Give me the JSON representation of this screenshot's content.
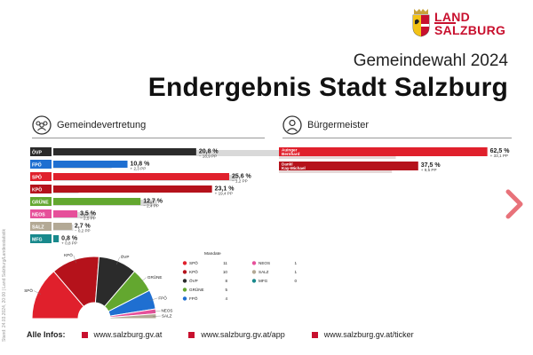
{
  "logo": {
    "line1": "LAND",
    "line2": "SALZBURG"
  },
  "header": {
    "subtitle": "Gemeindewahl 2024",
    "title": "Endergebnis Stadt Salzburg"
  },
  "sections": {
    "council": "Gemeindevertretung",
    "mayor": "Bürgermeister"
  },
  "side_note": "Stand: 24.03.2024, 20:00 | Land Salzburg/Landesstatistik",
  "footer": {
    "label": "Alle Infos:",
    "links": [
      "www.salzburg.gv.at",
      "www.salzburg.gv.at/app",
      "www.salzburg.gv.at/ticker"
    ]
  },
  "colors": {
    "brand_red": "#c8102e",
    "comparison_gray": "#d9d9d9",
    "text": "#222222"
  },
  "chart_data": [
    {
      "type": "bar",
      "title": "Gemeindevertretung",
      "orientation": "horizontal",
      "xlim": [
        0,
        30
      ],
      "categories": [
        "ÖVP",
        "FPÖ",
        "SPÖ",
        "KPÖ",
        "GRÜNE",
        "NEOS",
        "SALZ",
        "MFG"
      ],
      "values": [
        20.8,
        10.8,
        25.6,
        23.1,
        12.7,
        3.5,
        2.7,
        0.8
      ],
      "value_labels": [
        "20,8 %",
        "10,8 %",
        "25,6 %",
        "23,1 %",
        "12,7 %",
        "3,5 %",
        "2,7 %",
        "0,8 %"
      ],
      "change_labels": [
        "− 18,9 PP",
        "+ 2,3 PP",
        "− 1,2 PP",
        "+ 19,4 PP",
        "− 2,4 PP",
        "− 2,5 PP",
        "− 0,2 PP",
        "+ 0,8 PP"
      ],
      "previous_values": [
        39.7,
        8.5,
        26.8,
        3.7,
        15.1,
        6.0,
        2.9,
        0
      ],
      "colors": [
        "#2b2b2b",
        "#1f6fd1",
        "#e0202c",
        "#b5121b",
        "#63a72f",
        "#e6509a",
        "#b3a995",
        "#18898c"
      ]
    },
    {
      "type": "bar",
      "title": "Bürgermeister",
      "orientation": "horizontal",
      "xlim": [
        0,
        70
      ],
      "categories": [
        "Auinger Bernhard",
        "Dankl Kay-Michael"
      ],
      "values": [
        62.5,
        37.5
      ],
      "value_labels": [
        "62,5 %",
        "37,5 %"
      ],
      "change_labels": [
        "+ 33,1 PP",
        "+ 9,5 PP"
      ],
      "previous_values": [
        29.4,
        28.0
      ],
      "colors": [
        "#e0202c",
        "#b5121b"
      ]
    },
    {
      "type": "pie",
      "variant": "semicircle",
      "title": "Mandate",
      "categories": [
        "SPÖ",
        "KPÖ",
        "ÖVP",
        "GRÜNE",
        "FPÖ",
        "NEOS",
        "SALZ",
        "MFG"
      ],
      "values": [
        11,
        10,
        8,
        5,
        4,
        1,
        1,
        0
      ],
      "colors": [
        "#e0202c",
        "#b5121b",
        "#2b2b2b",
        "#63a72f",
        "#1f6fd1",
        "#e6509a",
        "#b3a995",
        "#18898c"
      ]
    }
  ]
}
